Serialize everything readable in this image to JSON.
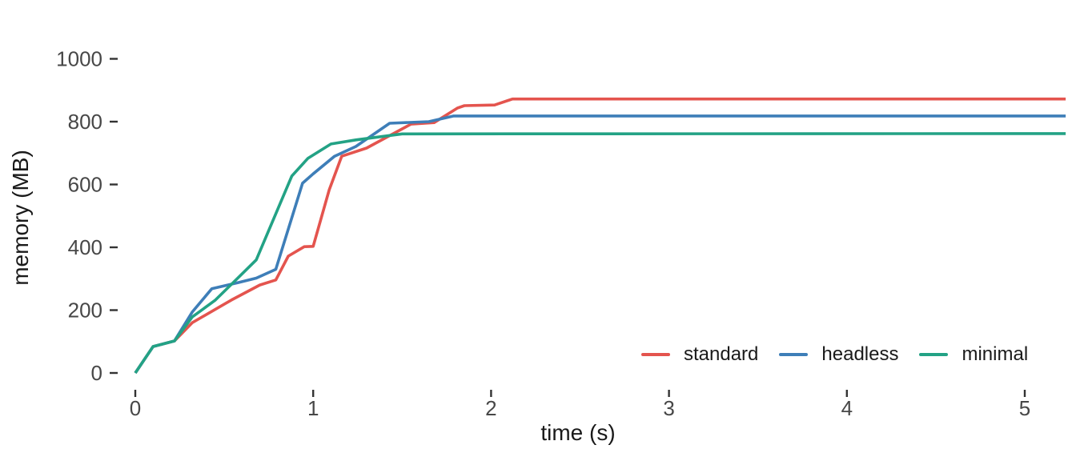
{
  "figure": {
    "background_color": "#ffffff",
    "text_color": "#1a1a1a",
    "tick_label_color": "#474747",
    "tick_mark_color": "#333333"
  },
  "chart_data": {
    "type": "line",
    "title": "",
    "xlabel": "time (s)",
    "ylabel": "memory (MB)",
    "xlim": [
      -0.07,
      5.3
    ],
    "ylim": [
      -10,
      1080
    ],
    "x_ticks": [
      0,
      1,
      2,
      3,
      4,
      5
    ],
    "y_ticks": [
      0,
      200,
      400,
      600,
      800,
      1000
    ],
    "grid": false,
    "legend_position": "inside-bottom-right",
    "series": [
      {
        "name": "standard",
        "color": "#E4544E",
        "plateau_MB": 872,
        "points": [
          [
            0,
            0
          ],
          [
            0.1,
            84
          ],
          [
            0.22,
            102
          ],
          [
            0.32,
            160
          ],
          [
            0.54,
            232
          ],
          [
            0.7,
            280
          ],
          [
            0.79,
            296
          ],
          [
            0.86,
            372
          ],
          [
            0.95,
            402
          ],
          [
            1.0,
            403
          ],
          [
            1.09,
            583
          ],
          [
            1.16,
            690
          ],
          [
            1.3,
            716
          ],
          [
            1.55,
            792
          ],
          [
            1.68,
            797
          ],
          [
            1.81,
            843
          ],
          [
            1.85,
            851
          ],
          [
            2.02,
            853
          ],
          [
            2.12,
            872
          ],
          [
            5.23,
            872
          ]
        ]
      },
      {
        "name": "headless",
        "color": "#3E7EB8",
        "plateau_MB": 818,
        "points": [
          [
            0,
            0
          ],
          [
            0.1,
            84
          ],
          [
            0.22,
            102
          ],
          [
            0.32,
            194
          ],
          [
            0.43,
            268
          ],
          [
            0.58,
            288
          ],
          [
            0.68,
            302
          ],
          [
            0.79,
            330
          ],
          [
            0.94,
            604
          ],
          [
            1.0,
            634
          ],
          [
            1.12,
            690
          ],
          [
            1.24,
            721
          ],
          [
            1.43,
            795
          ],
          [
            1.65,
            800
          ],
          [
            1.79,
            818
          ],
          [
            5.23,
            818
          ]
        ]
      },
      {
        "name": "minimal",
        "color": "#23A285",
        "plateau_MB": 762,
        "points": [
          [
            0,
            0
          ],
          [
            0.1,
            84
          ],
          [
            0.22,
            102
          ],
          [
            0.32,
            178
          ],
          [
            0.45,
            232
          ],
          [
            0.56,
            293
          ],
          [
            0.68,
            360
          ],
          [
            0.88,
            627
          ],
          [
            0.97,
            683
          ],
          [
            1.1,
            729
          ],
          [
            1.24,
            742
          ],
          [
            1.5,
            761
          ],
          [
            5.23,
            762
          ]
        ]
      }
    ]
  },
  "legend": {
    "items": [
      {
        "label": "standard"
      },
      {
        "label": "headless"
      },
      {
        "label": "minimal"
      }
    ]
  }
}
